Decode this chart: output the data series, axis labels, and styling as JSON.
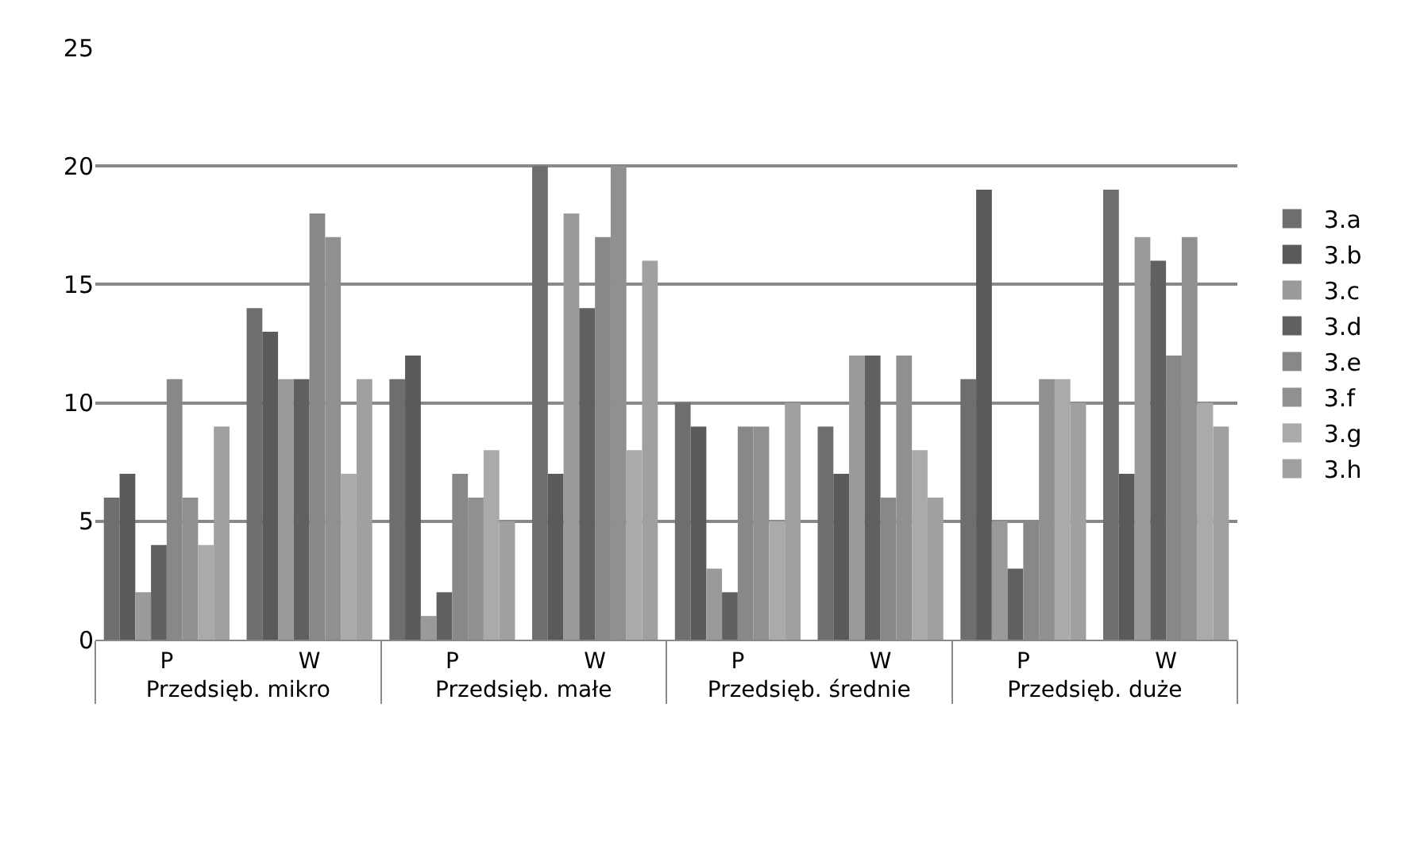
{
  "chart_data": {
    "type": "bar",
    "categories": [
      "P",
      "W",
      "P",
      "W",
      "P",
      "W",
      "P",
      "W"
    ],
    "annotations": [
      "Przedsięb. mikro",
      "Przedsięb. małe",
      "Przedsięb. średnie",
      "Przedsięb. duże"
    ],
    "series": [
      {
        "name": "3.a",
        "color": "#6e6e6e",
        "values": [
          6,
          14,
          11,
          20,
          10,
          9,
          11,
          19
        ]
      },
      {
        "name": "3.b",
        "color": "#5a5a5a",
        "values": [
          7,
          13,
          12,
          7,
          9,
          7,
          19,
          7
        ]
      },
      {
        "name": "3.c",
        "color": "#9a9a9a",
        "values": [
          2,
          11,
          1,
          18,
          3,
          12,
          5,
          17
        ]
      },
      {
        "name": "3.d",
        "color": "#606060",
        "values": [
          4,
          11,
          2,
          14,
          2,
          12,
          3,
          16
        ]
      },
      {
        "name": "3.e",
        "color": "#888888",
        "values": [
          11,
          18,
          7,
          17,
          9,
          6,
          5,
          12
        ]
      },
      {
        "name": "3.f",
        "color": "#909090",
        "values": [
          6,
          17,
          6,
          20,
          9,
          12,
          11,
          17
        ]
      },
      {
        "name": "3.g",
        "color": "#aaaaaa",
        "values": [
          4,
          7,
          8,
          8,
          5,
          8,
          11,
          10
        ]
      },
      {
        "name": "3.h",
        "color": "#a0a0a0",
        "values": [
          9,
          11,
          5,
          16,
          10,
          6,
          10,
          9
        ]
      }
    ],
    "ylim": [
      0,
      25
    ],
    "yticks": [
      0,
      5,
      10,
      15,
      20,
      25
    ],
    "grid": "y",
    "legend": "right"
  }
}
